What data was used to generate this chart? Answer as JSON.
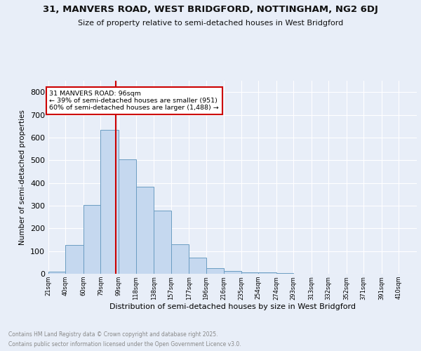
{
  "title1": "31, MANVERS ROAD, WEST BRIDGFORD, NOTTINGHAM, NG2 6DJ",
  "title2": "Size of property relative to semi-detached houses in West Bridgford",
  "xlabel": "Distribution of semi-detached houses by size in West Bridgford",
  "ylabel": "Number of semi-detached properties",
  "bin_labels": [
    "21sqm",
    "40sqm",
    "60sqm",
    "79sqm",
    "99sqm",
    "118sqm",
    "138sqm",
    "157sqm",
    "177sqm",
    "196sqm",
    "216sqm",
    "235sqm",
    "254sqm",
    "274sqm",
    "293sqm",
    "313sqm",
    "332sqm",
    "352sqm",
    "371sqm",
    "391sqm",
    "410sqm"
  ],
  "bar_heights": [
    10,
    128,
    302,
    635,
    503,
    383,
    278,
    131,
    72,
    25,
    12,
    5,
    5,
    2,
    0,
    0,
    0,
    0,
    0,
    0
  ],
  "bar_color": "#c5d8ef",
  "bar_edge_color": "#6b9dc2",
  "property_value": 96,
  "property_label": "31 MANVERS ROAD: 96sqm",
  "annotation_line1": "← 39% of semi-detached houses are smaller (951)",
  "annotation_line2": "60% of semi-detached houses are larger (1,488) →",
  "vline_color": "#cc0000",
  "annotation_box_edge_color": "#cc0000",
  "footer_line1": "Contains HM Land Registry data © Crown copyright and database right 2025.",
  "footer_line2": "Contains public sector information licensed under the Open Government Licence v3.0.",
  "background_color": "#e8eef8",
  "grid_color": "#ffffff",
  "ylim": [
    0,
    850
  ],
  "yticks": [
    0,
    100,
    200,
    300,
    400,
    500,
    600,
    700,
    800
  ]
}
